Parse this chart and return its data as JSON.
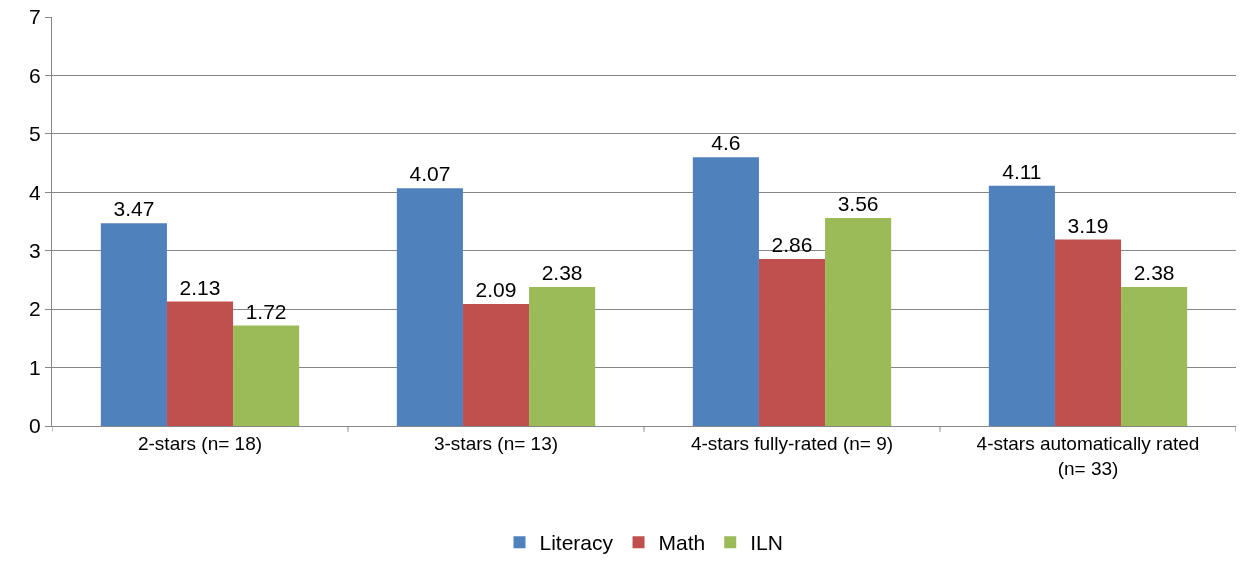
{
  "chart_data": {
    "type": "bar",
    "categories": [
      "2-stars (n= 18)",
      "3-stars (n= 13)",
      "4-stars fully-rated (n= 9)",
      "4-stars automatically rated (n= 33)"
    ],
    "series": [
      {
        "name": "Literacy",
        "color": "#4f81bd",
        "values": [
          3.47,
          4.07,
          4.6,
          4.11
        ]
      },
      {
        "name": "Math",
        "color": "#c0504d",
        "values": [
          2.13,
          2.09,
          2.86,
          3.19
        ]
      },
      {
        "name": "ILN",
        "color": "#9bbb59",
        "values": [
          1.72,
          2.38,
          3.56,
          2.38
        ]
      }
    ],
    "ylim": [
      0,
      7
    ],
    "yticks": [
      0,
      1,
      2,
      3,
      4,
      5,
      6,
      7
    ],
    "grid": "y",
    "legend": "bottom",
    "data_labels": true
  }
}
